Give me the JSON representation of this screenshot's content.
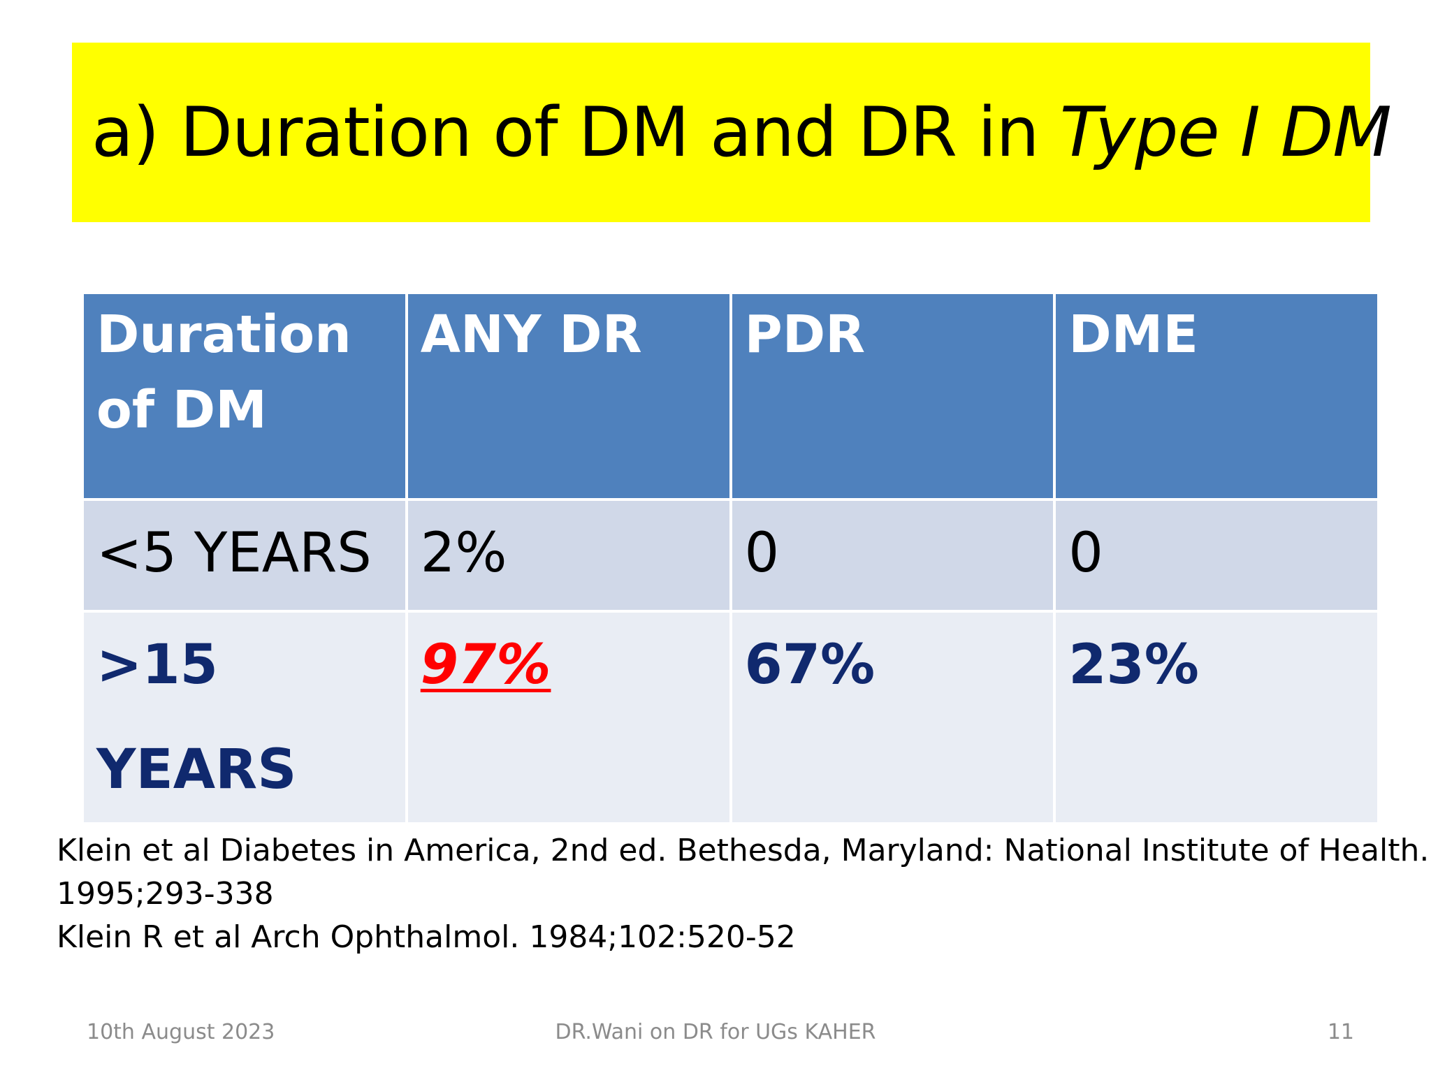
{
  "title": {
    "plain": "a) Duration of DM and DR in ",
    "italic": "Type I DM"
  },
  "table": {
    "headers": [
      "Duration of DM",
      "ANY DR",
      "PDR",
      "DME"
    ],
    "rows": [
      [
        "<5 YEARS",
        "2%",
        "0",
        "0"
      ],
      [
        ">15 YEARS",
        "97%",
        "67%",
        "23%"
      ]
    ]
  },
  "references": [
    "Klein et al Diabetes in America, 2nd ed. Bethesda, Maryland: National Institute of Health.",
    "1995;293-338",
    "Klein R et al Arch Ophthalmol. 1984;102:520-52"
  ],
  "footer": {
    "date": "10th August 2023",
    "center": "DR.Wani  on DR for UGs  KAHER",
    "page": "11"
  },
  "colors": {
    "title_band": "#ffff00",
    "header_bg": "#4f81bd",
    "row1_bg": "#d0d8e8",
    "row2_bg": "#e9edf4",
    "highlight": "#ff0000",
    "row2_text": "#10296e"
  }
}
